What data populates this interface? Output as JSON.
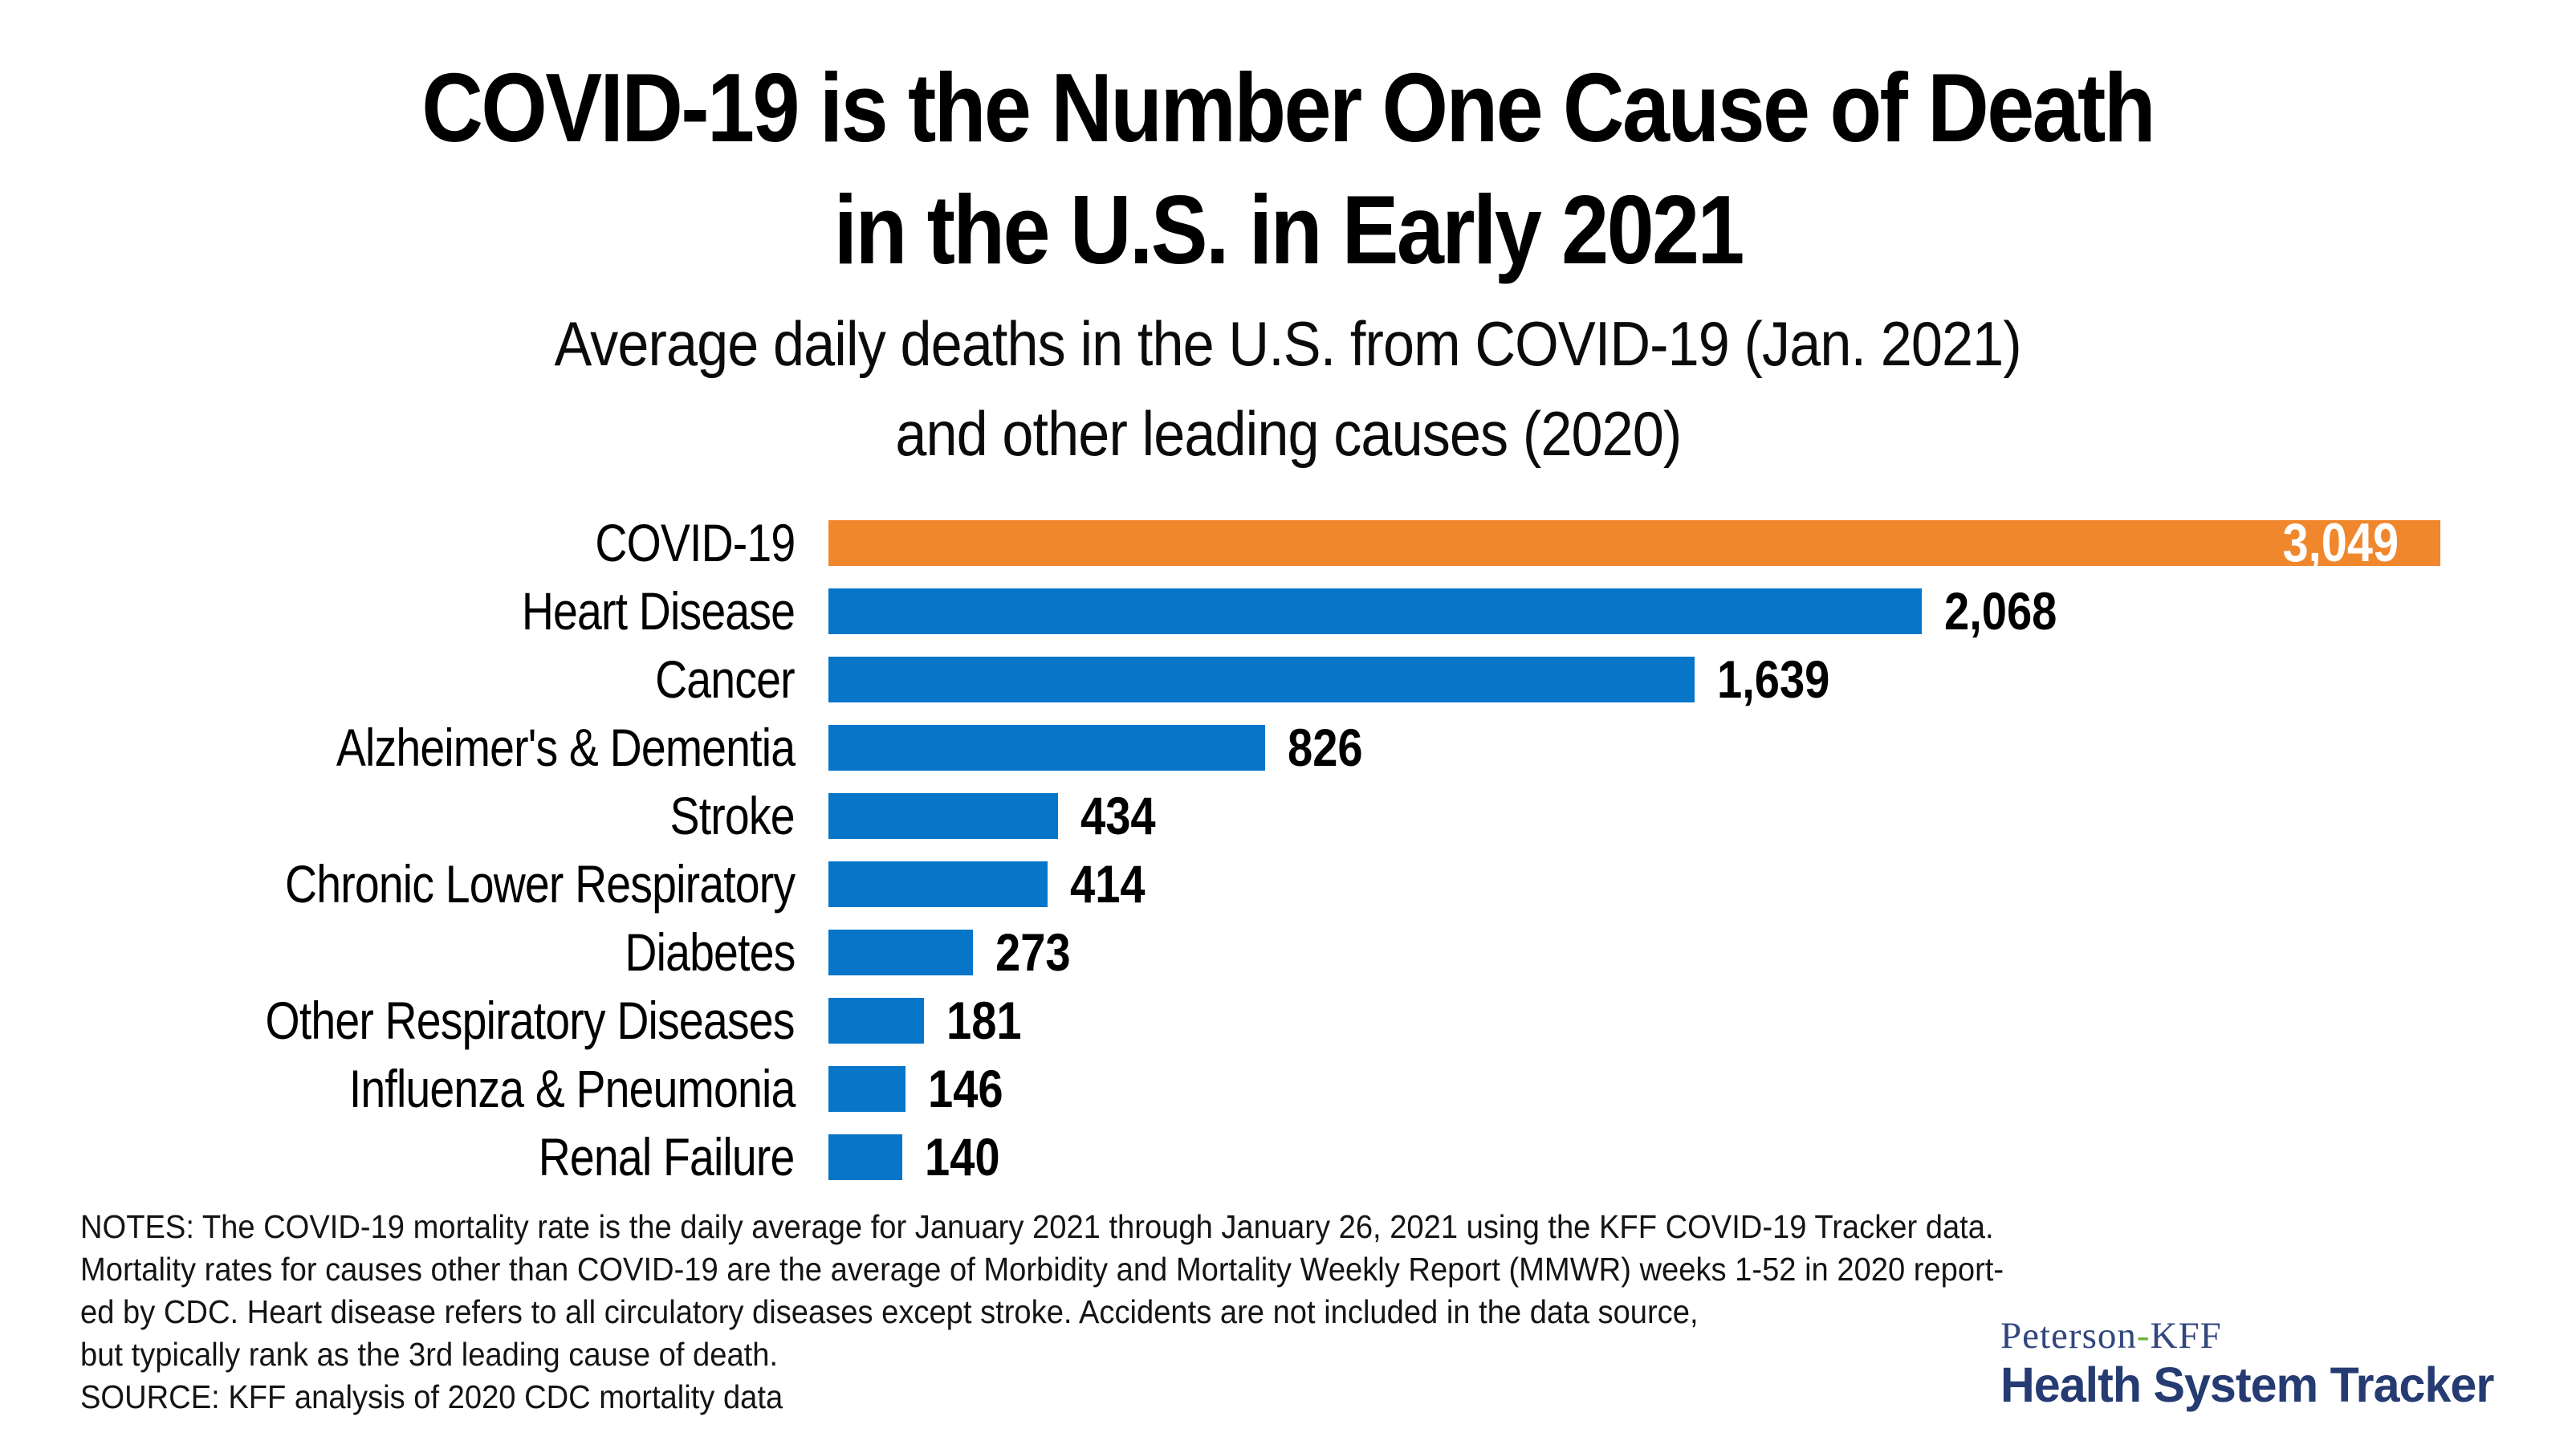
{
  "title": {
    "line1": "COVID-19 is the Number One Cause of Death",
    "line2": "in the U.S. in Early 2021"
  },
  "subtitle": {
    "line1": "Average daily deaths in the U.S. from COVID-19 (Jan. 2021)",
    "line2": "and other leading causes (2020)"
  },
  "chart_data": {
    "type": "bar",
    "orientation": "horizontal",
    "title": "COVID-19 is the Number One Cause of Death in the U.S. in Early 2021",
    "subtitle": "Average daily deaths in the U.S. from COVID-19 (Jan. 2021) and other leading causes (2020)",
    "xlabel": "",
    "ylabel": "",
    "xlim": [
      0,
      3049
    ],
    "grid": false,
    "legend": "none",
    "categories": [
      "COVID-19",
      "Heart Disease",
      "Cancer",
      "Alzheimer's & Dementia",
      "Stroke",
      "Chronic Lower Respiratory",
      "Diabetes",
      "Other Respiratory Diseases",
      "Influenza & Pneumonia",
      "Renal Failure"
    ],
    "values": [
      3049,
      2068,
      1639,
      826,
      434,
      414,
      273,
      181,
      146,
      140
    ],
    "value_labels": [
      "3,049",
      "2,068",
      "1,639",
      "826",
      "434",
      "414",
      "273",
      "181",
      "146",
      "140"
    ],
    "highlight_index": 0,
    "value_label_placement": [
      "inside-right-white",
      "outside",
      "outside",
      "outside",
      "outside",
      "outside",
      "outside",
      "outside",
      "outside",
      "outside"
    ],
    "colors": {
      "highlight_bar": "#F0872D",
      "default_bar": "#0775C8",
      "value_text": "#000000",
      "inside_value_text": "#FFFFFF"
    }
  },
  "notes": {
    "lines": [
      "NOTES: The COVID-19 mortality rate is the daily average for January 2021 through January 26, 2021 using the KFF COVID-19 Tracker data.",
      "Mortality rates for causes other than COVID-19 are the average of Morbidity and Mortality Weekly Report (MMWR) weeks 1-52 in 2020 report-",
      "ed by CDC. Heart disease refers to all circulatory diseases except stroke. Accidents are not included in the data source,",
      "but typically rank as the 3rd leading cause of death.",
      "SOURCE: KFF analysis of 2020 CDC mortality data"
    ]
  },
  "logo": {
    "peterson": "Peterson",
    "hyphen": "-",
    "kff": "KFF",
    "product": "Health System Tracker",
    "colors": {
      "serif_navy": "#32477E",
      "green": "#6CB23E",
      "navy": "#253B72"
    }
  }
}
